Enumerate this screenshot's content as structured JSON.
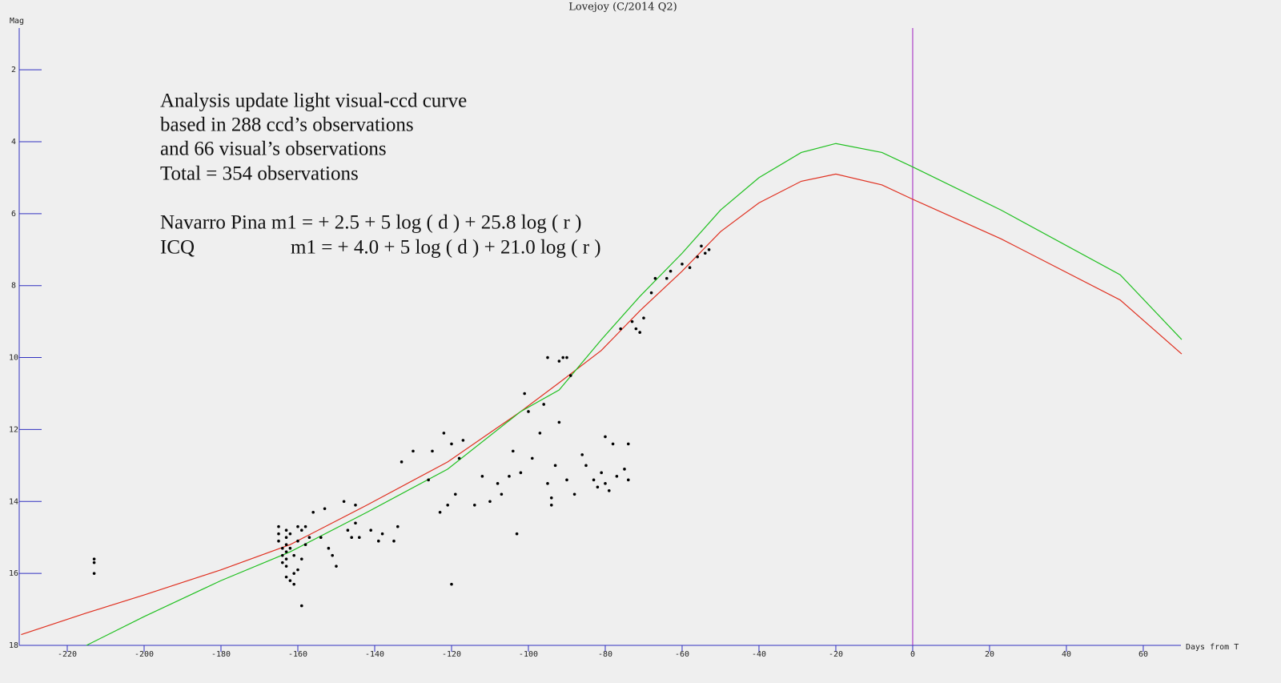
{
  "chart_data": {
    "type": "scatter",
    "title": "Lovejoy (C/2014 Q2)",
    "y_label": "Mag",
    "x_label": "Days from T",
    "annotations": [
      "Analysis update light visual-ccd curve",
      "based in 288 ccd’s observations",
      "and 66 visual’s observations",
      "Total = 354 observations",
      "Navarro Pina m1 = + 2.5 + 5 log ( d ) + 25.8 log ( r )",
      "ICQ",
      "m1 = + 4.0 + 5 log ( d ) + 21.0 log ( r )"
    ],
    "xlim": [
      -232.5,
      69.8
    ],
    "ylim": [
      18,
      0.84
    ],
    "xticks": [
      -220,
      -200,
      -180,
      -160,
      -140,
      -120,
      -100,
      -80,
      -60,
      -40,
      -20,
      0,
      20,
      40,
      60
    ],
    "yticks": [
      2,
      4,
      6,
      8,
      10,
      12,
      14,
      16,
      18
    ],
    "axis_color": "#3030c0",
    "point_color": "#000000",
    "vline_x": 0,
    "vline_color": "#a020c0",
    "x": [
      -213,
      -213,
      -213,
      -165,
      -165,
      -165,
      -164,
      -164,
      -164,
      -163,
      -163,
      -163,
      -163,
      -163,
      -163,
      -163,
      -162,
      -162,
      -162,
      -161,
      -161,
      -161,
      -160,
      -160,
      -160,
      -159,
      -159,
      -159,
      -158,
      -158,
      -157,
      -156,
      -154,
      -153,
      -152,
      -151,
      -150,
      -148,
      -147,
      -146,
      -145,
      -145,
      -144,
      -141,
      -139,
      -138,
      -135,
      -134,
      -133,
      -130,
      -126,
      -125,
      -123,
      -122,
      -121,
      -120,
      -120,
      -119,
      -118,
      -117,
      -114,
      -112,
      -110,
      -108,
      -107,
      -105,
      -104,
      -103,
      -102,
      -101,
      -100,
      -99,
      -97,
      -96,
      -95,
      -94,
      -94,
      -93,
      -92,
      -91,
      -90,
      -89,
      -88,
      -86,
      -85,
      -83,
      -82,
      -81,
      -80,
      -80,
      -79,
      -78,
      -77,
      -76,
      -75,
      -74,
      -74,
      -73,
      -72,
      -71,
      -70,
      -68,
      -67,
      -64,
      -63,
      -60,
      -58,
      -56,
      -54,
      -55,
      -53,
      -92,
      -90,
      -95
    ],
    "values": [
      15.6,
      15.7,
      16.0,
      14.7,
      14.9,
      15.1,
      15.3,
      15.5,
      15.7,
      14.8,
      15.0,
      15.2,
      15.4,
      15.6,
      15.8,
      16.1,
      16.2,
      14.9,
      15.3,
      15.5,
      16.0,
      16.3,
      14.7,
      15.1,
      15.9,
      16.9,
      14.8,
      15.6,
      15.2,
      14.7,
      15.0,
      14.3,
      15.0,
      14.2,
      15.3,
      15.5,
      15.8,
      14.0,
      14.8,
      15.0,
      14.6,
      14.1,
      15.0,
      14.8,
      15.1,
      14.9,
      15.1,
      14.7,
      12.9,
      12.6,
      13.4,
      12.6,
      14.3,
      12.1,
      14.1,
      16.3,
      12.4,
      13.8,
      12.8,
      12.3,
      14.1,
      13.3,
      14.0,
      13.5,
      13.8,
      13.3,
      12.6,
      14.9,
      13.2,
      11.0,
      11.5,
      12.8,
      12.1,
      11.3,
      13.5,
      13.9,
      14.1,
      13.0,
      11.8,
      10.0,
      13.4,
      10.5,
      13.8,
      12.7,
      13.0,
      13.4,
      13.6,
      13.2,
      12.2,
      13.5,
      13.7,
      12.4,
      13.3,
      9.2,
      13.1,
      12.4,
      13.4,
      9.0,
      9.2,
      9.3,
      8.9,
      8.2,
      7.8,
      7.8,
      7.6,
      7.4,
      7.5,
      7.2,
      7.1,
      6.9,
      7.0,
      10.1,
      10.0,
      10.0
    ],
    "curves": [
      {
        "color": "#e03020",
        "x": [
          -232,
          -215,
          -200,
          -180,
          -162,
          -142,
          -121,
          -102,
          -92,
          -81,
          -71,
          -60,
          -50,
          -40,
          -29,
          -20,
          -8,
          0,
          23,
          54,
          70
        ],
        "values": [
          17.7,
          17.1,
          16.6,
          15.9,
          15.2,
          14.1,
          12.9,
          11.5,
          10.7,
          9.8,
          8.7,
          7.6,
          6.5,
          5.7,
          5.1,
          4.9,
          5.2,
          5.6,
          6.7,
          8.4,
          9.9
        ]
      },
      {
        "color": "#20c020",
        "x": [
          -232,
          -215,
          -200,
          -180,
          -162,
          -142,
          -121,
          -102,
          -92,
          -81,
          -71,
          -60,
          -50,
          -40,
          -29,
          -20,
          -8,
          0,
          23,
          54,
          70
        ],
        "values": [
          null,
          18.0,
          17.2,
          16.2,
          15.4,
          14.3,
          13.1,
          11.5,
          10.9,
          9.5,
          8.3,
          7.1,
          5.9,
          5.0,
          4.3,
          4.05,
          4.3,
          4.7,
          5.9,
          7.7,
          9.5
        ]
      }
    ]
  }
}
